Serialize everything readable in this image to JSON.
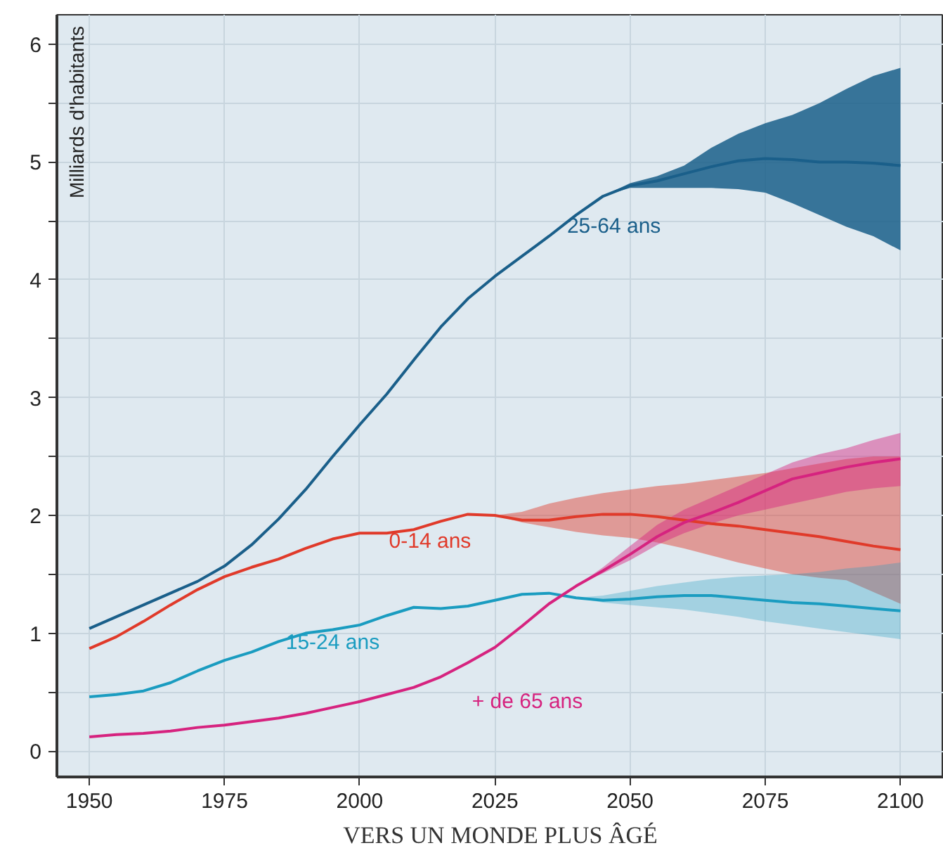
{
  "chart_data": {
    "type": "line",
    "title": "VERS UN MONDE PLUS ÂGÉ",
    "ylabel": "Milliards d'habitants",
    "x": [
      1950,
      1955,
      1960,
      1965,
      1970,
      1975,
      1980,
      1985,
      1990,
      1995,
      2000,
      2005,
      2010,
      2015,
      2020,
      2025,
      2030,
      2035,
      2040,
      2045,
      2050,
      2055,
      2060,
      2065,
      2070,
      2075,
      2080,
      2085,
      2090,
      2095,
      2100
    ],
    "series": [
      {
        "name": "25-64 ans",
        "color": "#1a5f8a",
        "values": [
          1.04,
          1.14,
          1.24,
          1.34,
          1.44,
          1.57,
          1.75,
          1.97,
          2.22,
          2.5,
          2.77,
          3.03,
          3.32,
          3.6,
          3.84,
          4.03,
          4.2,
          4.37,
          4.55,
          4.71,
          4.8,
          4.84,
          4.9,
          4.96,
          5.01,
          5.03,
          5.02,
          5.0,
          5.0,
          4.99,
          4.97
        ],
        "lower": [
          null,
          null,
          null,
          null,
          null,
          null,
          null,
          null,
          null,
          null,
          null,
          null,
          null,
          null,
          null,
          null,
          null,
          null,
          null,
          4.71,
          4.78,
          4.78,
          4.78,
          4.78,
          4.77,
          4.74,
          4.65,
          4.55,
          4.45,
          4.37,
          4.25
        ],
        "upper": [
          null,
          null,
          null,
          null,
          null,
          null,
          null,
          null,
          null,
          null,
          null,
          null,
          null,
          null,
          null,
          null,
          null,
          null,
          null,
          4.71,
          4.82,
          4.88,
          4.97,
          5.12,
          5.24,
          5.33,
          5.4,
          5.5,
          5.62,
          5.73,
          5.8
        ]
      },
      {
        "name": "0-14 ans",
        "color": "#e03a2a",
        "values": [
          0.87,
          0.97,
          1.1,
          1.24,
          1.37,
          1.48,
          1.56,
          1.63,
          1.72,
          1.8,
          1.85,
          1.85,
          1.88,
          1.95,
          2.01,
          2.0,
          1.96,
          1.96,
          1.99,
          2.01,
          2.01,
          1.99,
          1.96,
          1.93,
          1.91,
          1.88,
          1.85,
          1.82,
          1.78,
          1.74,
          1.71
        ],
        "lower": [
          null,
          null,
          null,
          null,
          null,
          null,
          null,
          null,
          null,
          null,
          null,
          null,
          null,
          null,
          null,
          2.0,
          1.94,
          1.9,
          1.86,
          1.83,
          1.81,
          1.77,
          1.72,
          1.66,
          1.6,
          1.55,
          1.5,
          1.47,
          1.45,
          1.35,
          1.25
        ],
        "upper": [
          null,
          null,
          null,
          null,
          null,
          null,
          null,
          null,
          null,
          null,
          null,
          null,
          null,
          null,
          null,
          2.0,
          2.03,
          2.1,
          2.15,
          2.19,
          2.22,
          2.25,
          2.27,
          2.3,
          2.33,
          2.36,
          2.4,
          2.44,
          2.48,
          2.5,
          2.5
        ]
      },
      {
        "name": "15-24 ans",
        "color": "#1a9cc0",
        "values": [
          0.46,
          0.48,
          0.51,
          0.58,
          0.68,
          0.77,
          0.84,
          0.93,
          1.0,
          1.03,
          1.07,
          1.15,
          1.22,
          1.21,
          1.23,
          1.28,
          1.33,
          1.34,
          1.3,
          1.28,
          1.29,
          1.31,
          1.32,
          1.32,
          1.3,
          1.28,
          1.26,
          1.25,
          1.23,
          1.21,
          1.19
        ],
        "lower": [
          null,
          null,
          null,
          null,
          null,
          null,
          null,
          null,
          null,
          null,
          null,
          null,
          null,
          null,
          null,
          null,
          null,
          null,
          1.3,
          1.26,
          1.24,
          1.22,
          1.2,
          1.17,
          1.14,
          1.1,
          1.07,
          1.04,
          1.01,
          0.98,
          0.95
        ],
        "upper": [
          null,
          null,
          null,
          null,
          null,
          null,
          null,
          null,
          null,
          null,
          null,
          null,
          null,
          null,
          null,
          null,
          null,
          null,
          1.3,
          1.32,
          1.36,
          1.4,
          1.43,
          1.46,
          1.48,
          1.49,
          1.5,
          1.52,
          1.55,
          1.57,
          1.6
        ]
      },
      {
        "name": "+ de 65 ans",
        "color": "#d6237f",
        "values": [
          0.12,
          0.14,
          0.15,
          0.17,
          0.2,
          0.22,
          0.25,
          0.28,
          0.32,
          0.37,
          0.42,
          0.48,
          0.54,
          0.63,
          0.75,
          0.88,
          1.06,
          1.25,
          1.4,
          1.53,
          1.67,
          1.82,
          1.94,
          2.02,
          2.11,
          2.21,
          2.31,
          2.36,
          2.41,
          2.45,
          2.48
        ],
        "lower": [
          null,
          null,
          null,
          null,
          null,
          null,
          null,
          null,
          null,
          null,
          null,
          null,
          null,
          null,
          null,
          null,
          null,
          null,
          1.4,
          1.51,
          1.62,
          1.75,
          1.85,
          1.93,
          2.0,
          2.05,
          2.1,
          2.15,
          2.2,
          2.23,
          2.25
        ],
        "upper": [
          null,
          null,
          null,
          null,
          null,
          null,
          null,
          null,
          null,
          null,
          null,
          null,
          null,
          null,
          null,
          null,
          null,
          null,
          1.4,
          1.56,
          1.74,
          1.92,
          2.05,
          2.15,
          2.25,
          2.35,
          2.45,
          2.52,
          2.57,
          2.64,
          2.7
        ]
      }
    ],
    "xlim": [
      1944,
      2108
    ],
    "ylim": [
      -0.22,
      6.25
    ],
    "xticks": [
      1950,
      1975,
      2000,
      2025,
      2050,
      2075,
      2100
    ],
    "yticks": [
      0,
      {
        "value": 0.5,
        "label": null
      },
      1,
      {
        "value": 1.5,
        "label": null
      },
      2,
      {
        "value": 2.5,
        "label": null
      },
      3,
      {
        "value": 3.5,
        "label": null
      },
      4,
      {
        "value": 4.5,
        "label": null
      },
      5,
      {
        "value": 5.5,
        "label": null
      },
      6
    ],
    "grid": true
  }
}
